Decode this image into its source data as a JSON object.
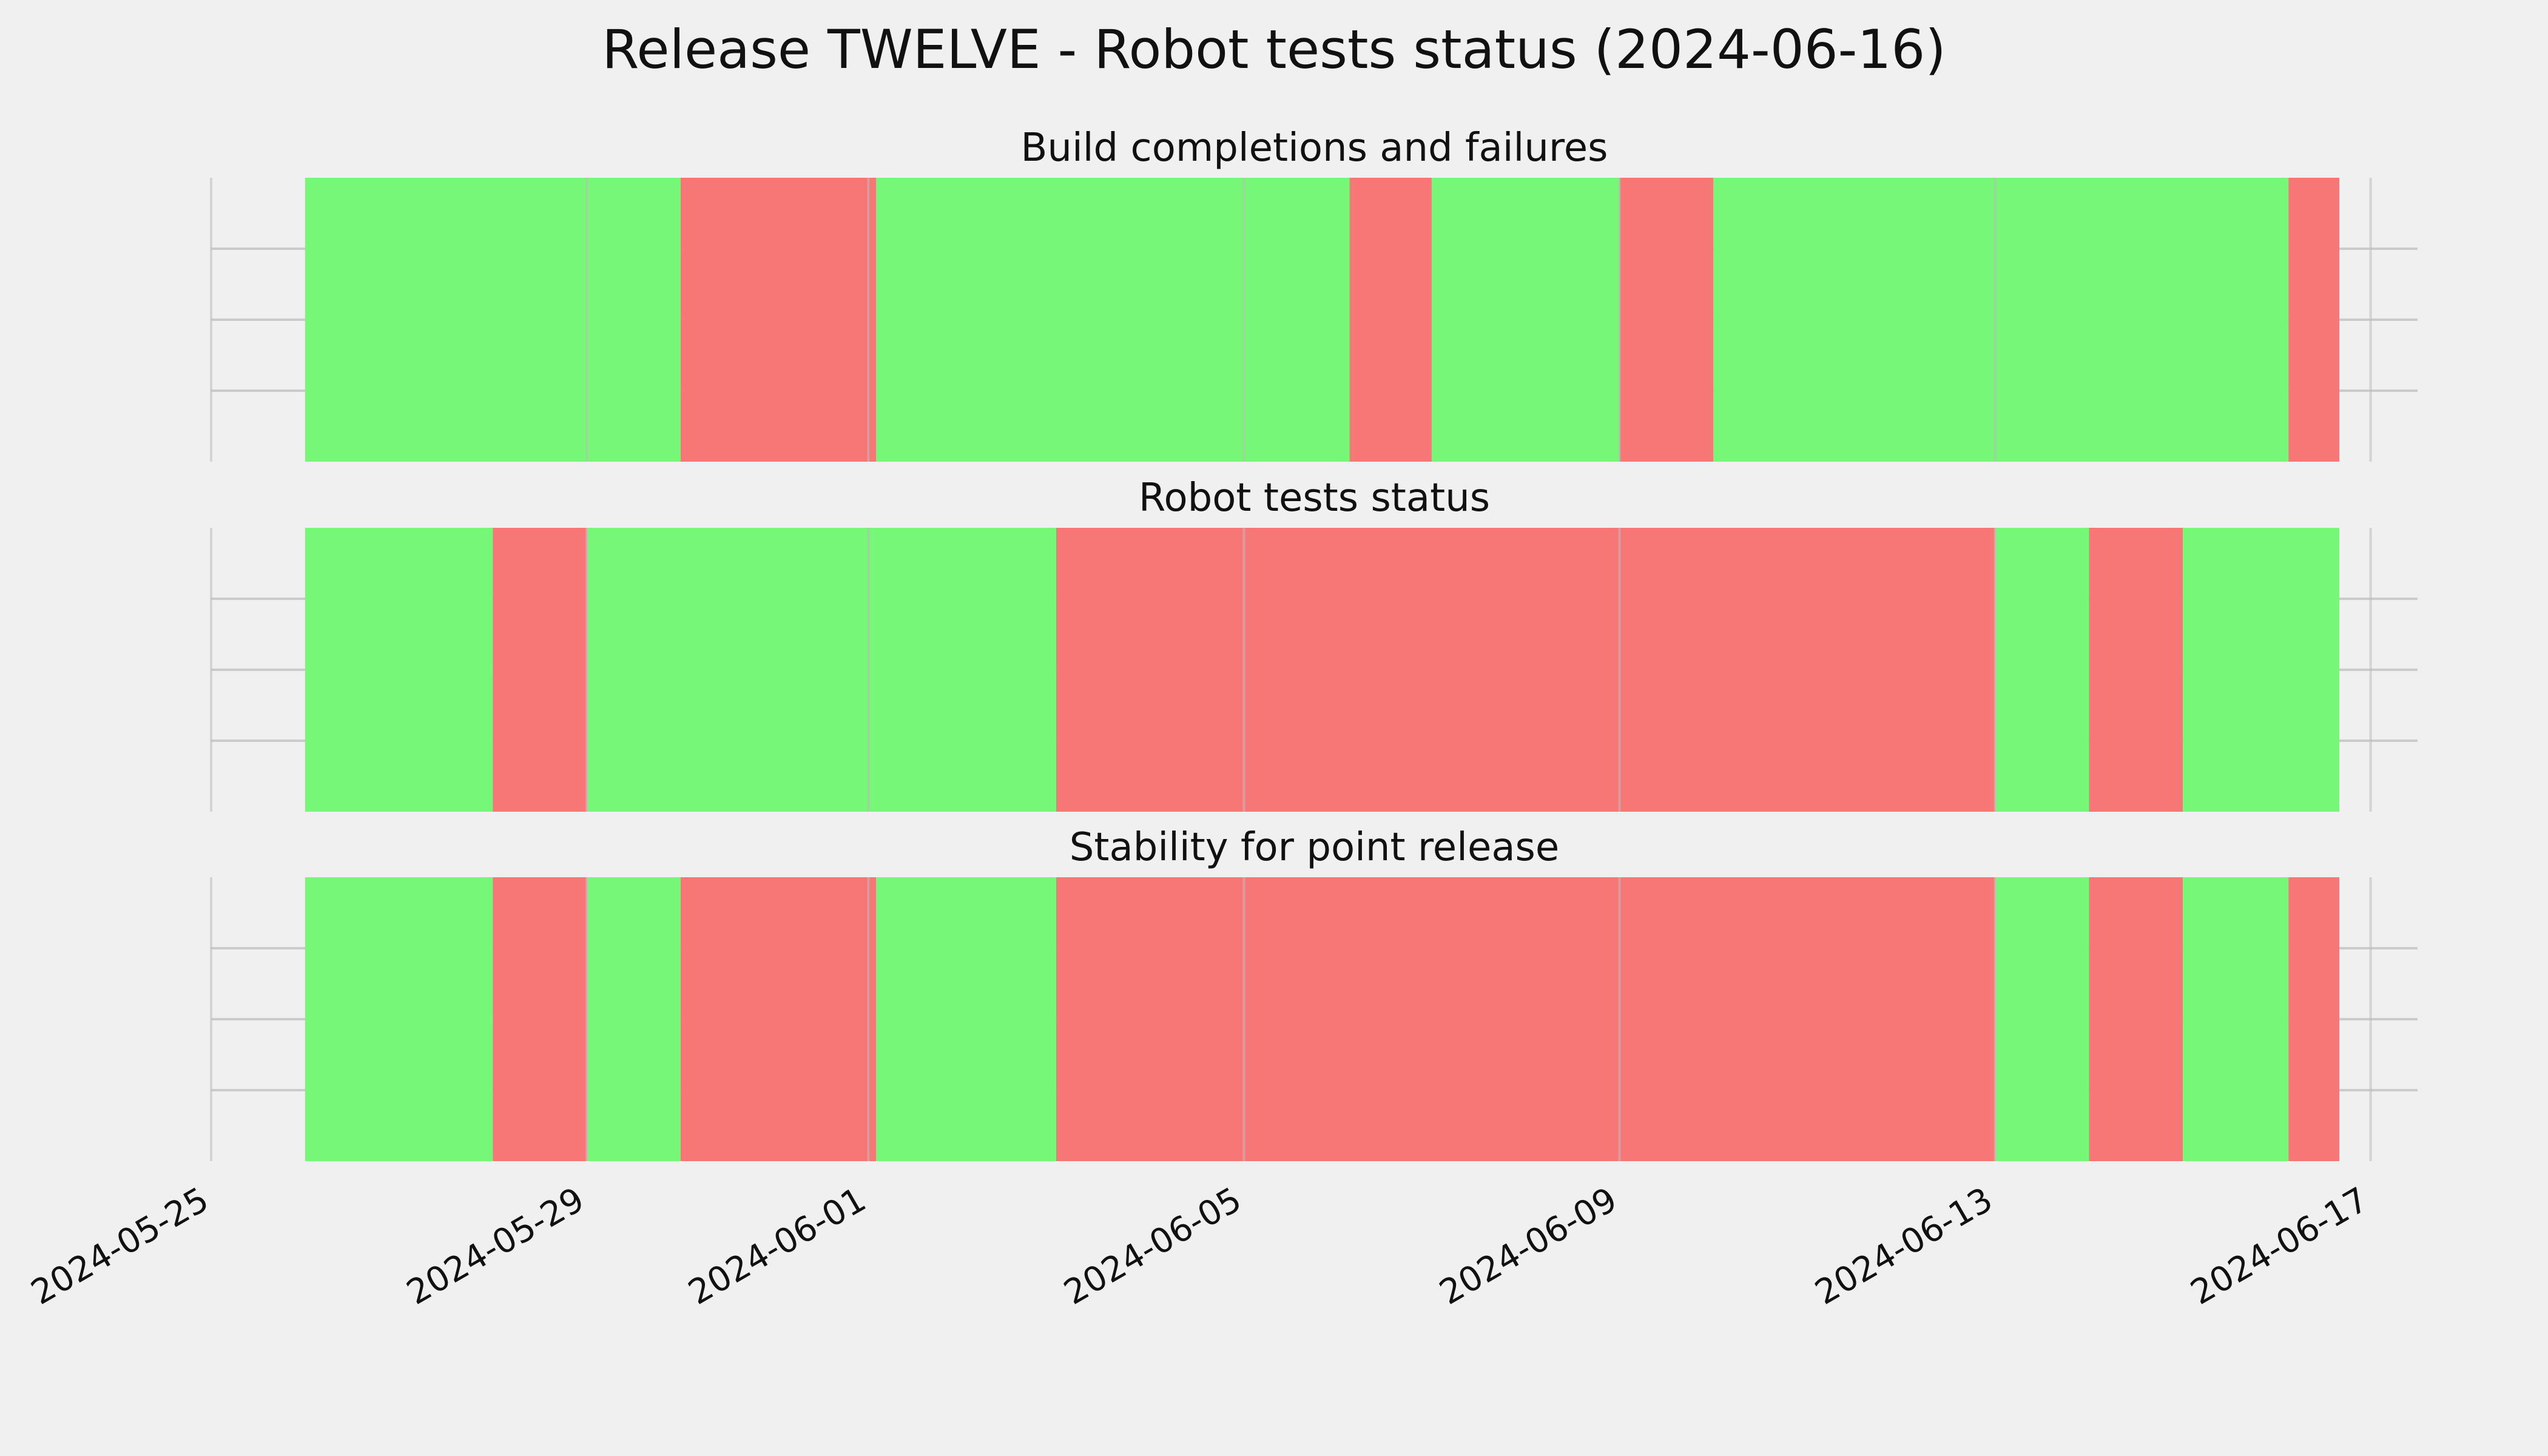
{
  "chart_data": {
    "type": "timeline",
    "title": "Release TWELVE - Robot tests status (2024-06-16)",
    "xlim": [
      "2024-05-25",
      "2024-06-17T12:00"
    ],
    "x_ticks": [
      "2024-05-25",
      "2024-05-29",
      "2024-06-01",
      "2024-06-05",
      "2024-06-09",
      "2024-06-13",
      "2024-06-17"
    ],
    "grid": true,
    "colors": {
      "background": "#f0f0f0",
      "success": "#77f777",
      "failure": "#f77777",
      "grid": "#cbcbcb"
    },
    "panels": [
      {
        "title": "Build completions and failures",
        "segments": [
          {
            "start": "2024-05-26",
            "end": "2024-05-30",
            "status": "success"
          },
          {
            "start": "2024-05-30",
            "end": "2024-06-01T02:00",
            "status": "failure"
          },
          {
            "start": "2024-06-01T02:00",
            "end": "2024-06-06T03:00",
            "status": "success"
          },
          {
            "start": "2024-06-06T03:00",
            "end": "2024-06-07",
            "status": "failure"
          },
          {
            "start": "2024-06-07",
            "end": "2024-06-09",
            "status": "success"
          },
          {
            "start": "2024-06-09",
            "end": "2024-06-10",
            "status": "failure"
          },
          {
            "start": "2024-06-10",
            "end": "2024-06-16T03:00",
            "status": "success"
          },
          {
            "start": "2024-06-16T03:00",
            "end": "2024-06-16T16:00",
            "status": "failure"
          }
        ]
      },
      {
        "title": "Robot tests status",
        "segments": [
          {
            "start": "2024-05-26",
            "end": "2024-05-28",
            "status": "success"
          },
          {
            "start": "2024-05-28",
            "end": "2024-05-29",
            "status": "failure"
          },
          {
            "start": "2024-05-29",
            "end": "2024-06-03",
            "status": "success"
          },
          {
            "start": "2024-06-03",
            "end": "2024-06-13",
            "status": "failure"
          },
          {
            "start": "2024-06-13",
            "end": "2024-06-14",
            "status": "success"
          },
          {
            "start": "2024-06-14",
            "end": "2024-06-15",
            "status": "failure"
          },
          {
            "start": "2024-06-15",
            "end": "2024-06-16T16:00",
            "status": "success"
          }
        ]
      },
      {
        "title": "Stability for point release",
        "segments": [
          {
            "start": "2024-05-26",
            "end": "2024-05-28",
            "status": "success"
          },
          {
            "start": "2024-05-28",
            "end": "2024-05-29",
            "status": "failure"
          },
          {
            "start": "2024-05-29",
            "end": "2024-05-30",
            "status": "success"
          },
          {
            "start": "2024-05-30",
            "end": "2024-06-01T02:00",
            "status": "failure"
          },
          {
            "start": "2024-06-01T02:00",
            "end": "2024-06-03",
            "status": "success"
          },
          {
            "start": "2024-06-03",
            "end": "2024-06-13",
            "status": "failure"
          },
          {
            "start": "2024-06-13",
            "end": "2024-06-14",
            "status": "success"
          },
          {
            "start": "2024-06-14",
            "end": "2024-06-15",
            "status": "failure"
          },
          {
            "start": "2024-06-15",
            "end": "2024-06-16T03:00",
            "status": "success"
          },
          {
            "start": "2024-06-16T03:00",
            "end": "2024-06-16T16:00",
            "status": "failure"
          }
        ]
      }
    ]
  }
}
